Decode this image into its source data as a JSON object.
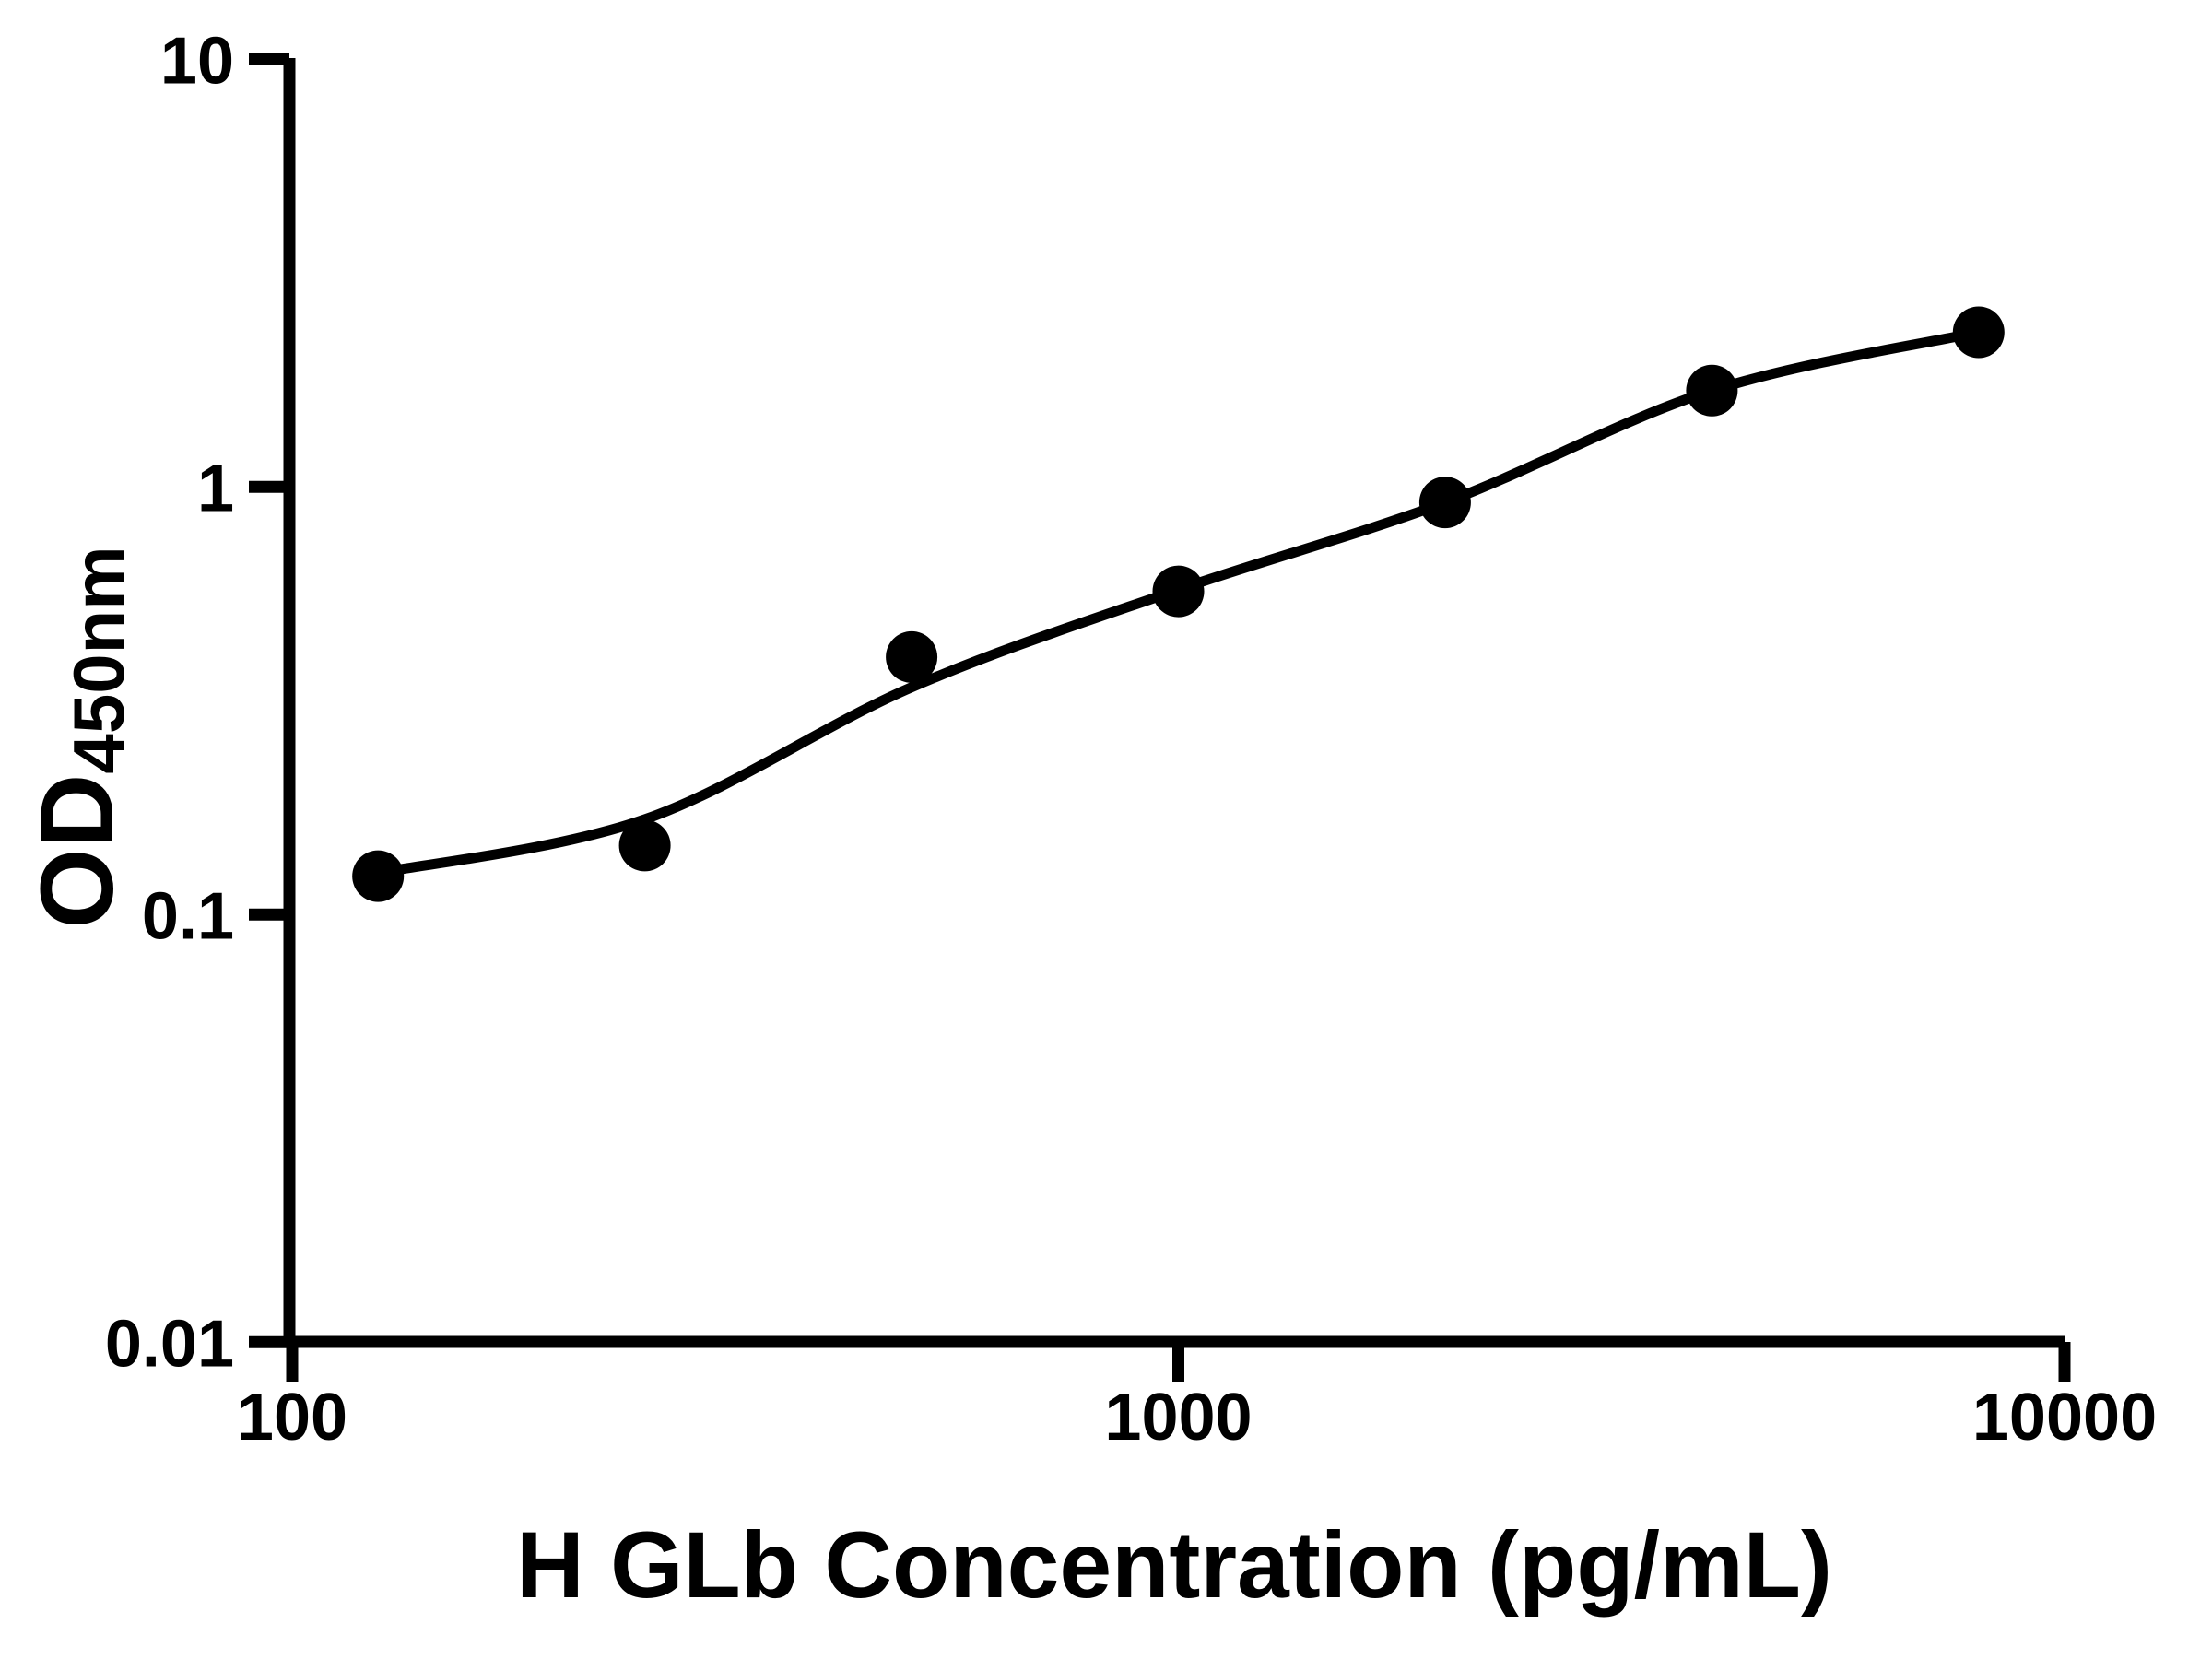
{
  "chart_data": {
    "type": "scatter",
    "title": "",
    "xlabel": "H GLb Concentration (pg/mL)",
    "ylabel": "OD450nm",
    "ylabel_parts": {
      "base": "OD",
      "subscript": "450nm"
    },
    "x_scale": "log",
    "y_scale": "log",
    "xlim": [
      100,
      10000
    ],
    "ylim": [
      0.01,
      10
    ],
    "grid": false,
    "legend": null,
    "x_ticks": [
      {
        "value": 100,
        "label": "100"
      },
      {
        "value": 1000,
        "label": "1000"
      },
      {
        "value": 10000,
        "label": "10000"
      }
    ],
    "y_ticks": [
      {
        "value": 10,
        "label": "10"
      },
      {
        "value": 1,
        "label": "1"
      },
      {
        "value": 0.1,
        "label": "0.1"
      },
      {
        "value": 0.01,
        "label": "0.01"
      }
    ],
    "series": [
      {
        "name": "standard-points",
        "type": "scatter",
        "marker": "filled-circle",
        "color": "#000000",
        "points": [
          {
            "x": 125,
            "y": 0.123
          },
          {
            "x": 250,
            "y": 0.145
          },
          {
            "x": 500,
            "y": 0.4
          },
          {
            "x": 1000,
            "y": 0.57
          },
          {
            "x": 2000,
            "y": 0.92
          },
          {
            "x": 4000,
            "y": 1.68
          },
          {
            "x": 8000,
            "y": 2.3
          }
        ]
      },
      {
        "name": "fit-curve",
        "type": "line",
        "color": "#000000",
        "points": [
          {
            "x": 125,
            "y": 0.125
          },
          {
            "x": 250,
            "y": 0.167
          },
          {
            "x": 500,
            "y": 0.34
          },
          {
            "x": 1000,
            "y": 0.575
          },
          {
            "x": 2000,
            "y": 0.92
          },
          {
            "x": 4000,
            "y": 1.68
          },
          {
            "x": 8000,
            "y": 2.3
          }
        ]
      }
    ],
    "colors": {
      "foreground": "#000000",
      "background": "#ffffff"
    }
  }
}
